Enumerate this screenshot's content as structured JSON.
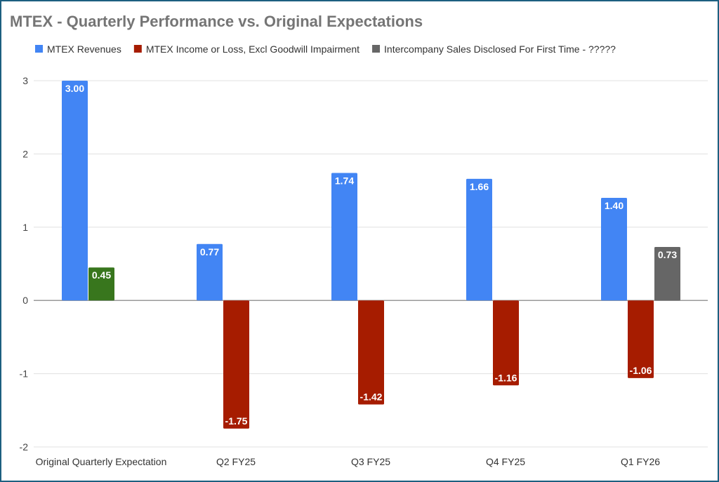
{
  "chart_data": {
    "type": "bar",
    "title": "MTEX - Quarterly Performance vs. Original Expectations",
    "xlabel": "",
    "ylabel": "",
    "ylim": [
      -2,
      3
    ],
    "yticks": [
      3,
      2,
      1,
      0,
      -1,
      -2
    ],
    "grid": true,
    "legend_position": "top",
    "categories": [
      "Original Quarterly Expectation",
      "Q2 FY25",
      "Q3 FY25",
      "Q4 FY25",
      "Q1 FY26"
    ],
    "series": [
      {
        "name": "MTEX Revenues",
        "color": "#4285f4",
        "values": [
          3.0,
          0.77,
          1.74,
          1.66,
          1.4
        ],
        "labels": [
          "3.00",
          "0.77",
          "1.74",
          "1.66",
          "1.40"
        ]
      },
      {
        "name": "MTEX Income or Loss, Excl Goodwill Impairment",
        "color": "#a61c00",
        "point_colors": [
          "#38761d",
          null,
          null,
          null,
          null
        ],
        "values": [
          0.45,
          -1.75,
          -1.42,
          -1.16,
          -1.06
        ],
        "labels": [
          "0.45",
          "-1.75",
          "-1.42",
          "-1.16",
          "-1.06"
        ]
      },
      {
        "name": "Intercompany Sales Disclosed For First Time - ?????",
        "color": "#666666",
        "values": [
          null,
          null,
          null,
          null,
          0.73
        ],
        "labels": [
          null,
          null,
          null,
          null,
          "0.73"
        ]
      }
    ]
  }
}
